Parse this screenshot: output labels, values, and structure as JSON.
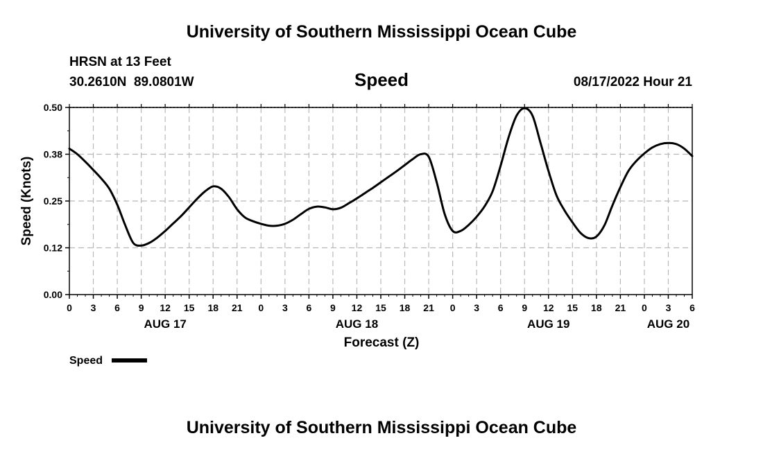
{
  "header": {
    "title": "University of Southern Mississippi Ocean Cube",
    "station": "HRSN at 13 Feet",
    "coords": "30.2610N  89.0801W",
    "datetime": "08/17/2022 Hour 21"
  },
  "footer": {
    "title": "University of Southern Mississippi Ocean Cube"
  },
  "chart_data": {
    "type": "line",
    "title": "Speed",
    "xlabel": "Forecast (Z)",
    "ylabel": "Speed (Knots)",
    "xlim": [
      0,
      78
    ],
    "ylim": [
      0,
      0.5
    ],
    "yticks": [
      {
        "value": 0.0,
        "label": "0.00"
      },
      {
        "value": 0.125,
        "label": "0.12"
      },
      {
        "value": 0.25,
        "label": "0.25"
      },
      {
        "value": 0.375,
        "label": "0.38"
      },
      {
        "value": 0.5,
        "label": "0.50"
      }
    ],
    "xticks": [
      {
        "value": 0,
        "label": "0"
      },
      {
        "value": 3,
        "label": "3"
      },
      {
        "value": 6,
        "label": "6"
      },
      {
        "value": 9,
        "label": "9"
      },
      {
        "value": 12,
        "label": "12"
      },
      {
        "value": 15,
        "label": "15"
      },
      {
        "value": 18,
        "label": "18"
      },
      {
        "value": 21,
        "label": "21"
      },
      {
        "value": 24,
        "label": "0"
      },
      {
        "value": 27,
        "label": "3"
      },
      {
        "value": 30,
        "label": "6"
      },
      {
        "value": 33,
        "label": "9"
      },
      {
        "value": 36,
        "label": "12"
      },
      {
        "value": 39,
        "label": "15"
      },
      {
        "value": 42,
        "label": "18"
      },
      {
        "value": 45,
        "label": "21"
      },
      {
        "value": 48,
        "label": "0"
      },
      {
        "value": 51,
        "label": "3"
      },
      {
        "value": 54,
        "label": "6"
      },
      {
        "value": 57,
        "label": "9"
      },
      {
        "value": 60,
        "label": "12"
      },
      {
        "value": 63,
        "label": "15"
      },
      {
        "value": 66,
        "label": "18"
      },
      {
        "value": 69,
        "label": "21"
      },
      {
        "value": 72,
        "label": "0"
      },
      {
        "value": 75,
        "label": "3"
      },
      {
        "value": 78,
        "label": "6"
      }
    ],
    "date_labels": [
      {
        "value": 12,
        "label": "AUG 17"
      },
      {
        "value": 36,
        "label": "AUG 18"
      },
      {
        "value": 60,
        "label": "AUG 19"
      },
      {
        "value": 75,
        "label": "AUG 20"
      }
    ],
    "grid": true,
    "legend": {
      "position": "bottom-left"
    },
    "series": [
      {
        "name": "Speed",
        "color": "#000000",
        "x": [
          0,
          1,
          2,
          3,
          4,
          5,
          6,
          7,
          8,
          9,
          10,
          11,
          12,
          13,
          14,
          15,
          16,
          17,
          18,
          19,
          20,
          21,
          22,
          23,
          24,
          25,
          26,
          27,
          28,
          29,
          30,
          31,
          32,
          33,
          34,
          35,
          36,
          37,
          38,
          39,
          40,
          41,
          42,
          43,
          44,
          45,
          46,
          47,
          48,
          49,
          50,
          51,
          52,
          53,
          54,
          55,
          56,
          57,
          58,
          59,
          60,
          61,
          62,
          63,
          64,
          65,
          66,
          67,
          68,
          69,
          70,
          71,
          72,
          73,
          74,
          75,
          76,
          77,
          78
        ],
        "values": [
          0.39,
          0.375,
          0.355,
          0.333,
          0.31,
          0.283,
          0.24,
          0.185,
          0.138,
          0.131,
          0.138,
          0.152,
          0.17,
          0.19,
          0.21,
          0.233,
          0.256,
          0.276,
          0.289,
          0.283,
          0.26,
          0.228,
          0.206,
          0.196,
          0.189,
          0.184,
          0.184,
          0.189,
          0.2,
          0.215,
          0.229,
          0.235,
          0.233,
          0.228,
          0.232,
          0.244,
          0.257,
          0.271,
          0.285,
          0.3,
          0.315,
          0.33,
          0.346,
          0.362,
          0.375,
          0.368,
          0.3,
          0.215,
          0.17,
          0.17,
          0.186,
          0.208,
          0.236,
          0.276,
          0.344,
          0.42,
          0.478,
          0.498,
          0.478,
          0.405,
          0.33,
          0.265,
          0.225,
          0.193,
          0.165,
          0.151,
          0.155,
          0.185,
          0.238,
          0.287,
          0.33,
          0.357,
          0.377,
          0.393,
          0.402,
          0.405,
          0.402,
          0.39,
          0.37
        ]
      }
    ]
  }
}
